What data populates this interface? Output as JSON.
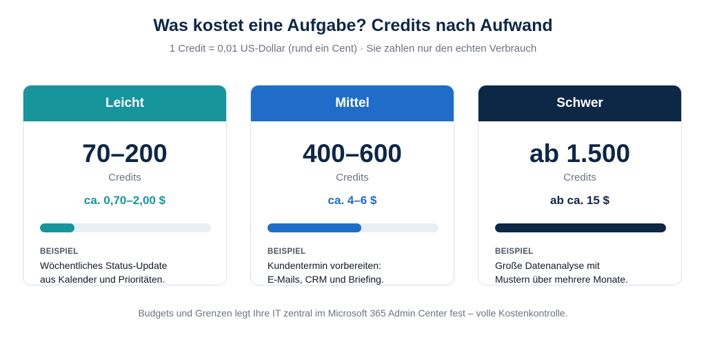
{
  "header": {
    "title": "Was kostet eine Aufgabe? Credits nach Aufwand",
    "subtitle": "1 Credit = 0,01 US-Dollar (rund ein Cent) · Sie zahlen nur den echten Verbrauch"
  },
  "cards": [
    {
      "label": "Leicht",
      "range": "70–200",
      "unit": "Credits",
      "price": "ca. 0,70–2,00 $",
      "level": 0.2,
      "color": "#17959c",
      "price_color": "#17959c",
      "example_label": "BEISPIEL",
      "example_line1": "Wöchentliches Status-Update",
      "example_line2": "aus Kalender und Prioritäten."
    },
    {
      "label": "Mittel",
      "range": "400–600",
      "unit": "Credits",
      "price": "ca. 4–6 $",
      "level": 0.55,
      "color": "#1f6dc8",
      "price_color": "#1f6dc8",
      "example_label": "BEISPIEL",
      "example_line1": "Kundentermin vorbereiten:",
      "example_line2": "E-Mails, CRM und Briefing."
    },
    {
      "label": "Schwer",
      "range": "ab 1.500",
      "unit": "Credits",
      "price": "ab ca. 15 $",
      "level": 1.0,
      "color": "#0d2747",
      "price_color": "#0d2747",
      "example_label": "BEISPIEL",
      "example_line1": "Große Datenanalyse mit",
      "example_line2": "Mustern über mehrere Monate."
    }
  ],
  "footer": {
    "note": "Budgets und Grenzen legt Ihre IT zentral im Microsoft 365 Admin Center fest – volle Kostenkontrolle."
  }
}
